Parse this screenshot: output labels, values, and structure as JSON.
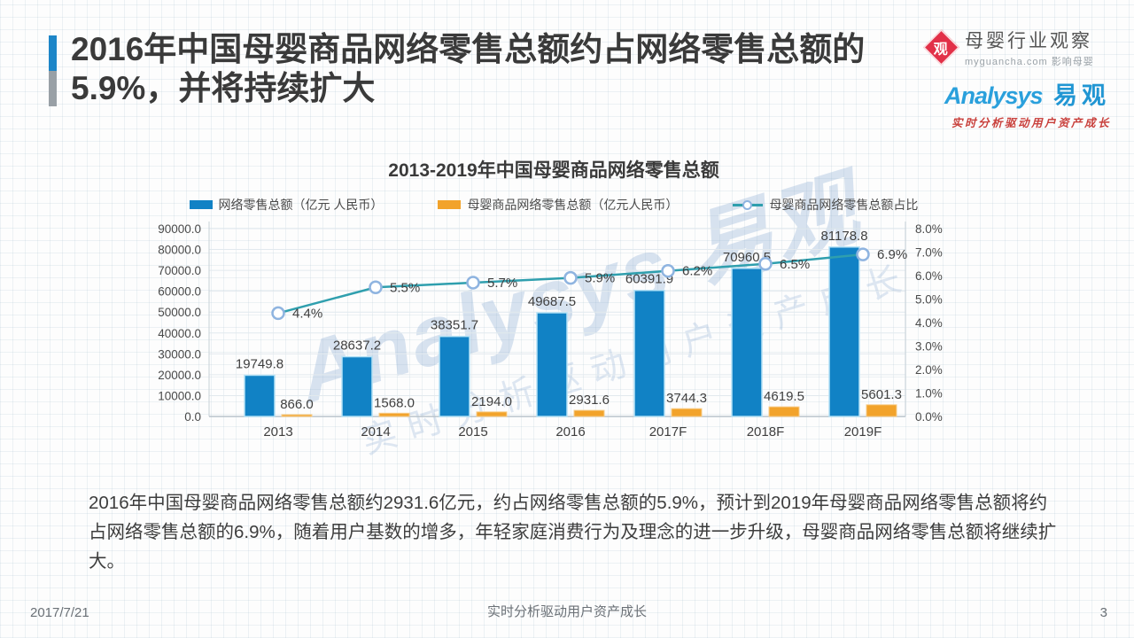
{
  "slide": {
    "title_lines": [
      "2016年中国母婴商品网络零售总额约占网络零售总额的",
      "5.9%，并将持续扩大"
    ]
  },
  "logos": {
    "myguancha": {
      "mark": "观",
      "name": "母婴行业观察",
      "subtitle": "myguancha.com 影响母婴"
    },
    "analysys": {
      "latin": "Analysys",
      "cjk": "易观",
      "tagline": "实时分析驱动用户资产成长"
    }
  },
  "chart": {
    "title": "2013-2019年中国母婴商品网络零售总额"
  },
  "chart_data": {
    "type": "combo",
    "title": "2013-2019年中国母婴商品网络零售总额",
    "categories": [
      "2013",
      "2014",
      "2015",
      "2016",
      "2017F",
      "2018F",
      "2019F"
    ],
    "series": [
      {
        "name": "网络零售总额（亿元 人民币）",
        "type": "bar",
        "axis": "left",
        "color": "#1182c5",
        "edge_color": "#b5e2f6",
        "values": [
          19749.8,
          28637.2,
          38351.7,
          49687.5,
          60391.9,
          70960.5,
          81178.8
        ]
      },
      {
        "name": "母婴商品网络零售总额（亿元人民币）",
        "type": "bar",
        "axis": "left",
        "color": "#f2a32b",
        "edge_color": "#f7cd8a",
        "values": [
          866.0,
          1568.0,
          2194.0,
          2931.6,
          3744.3,
          4619.5,
          5601.3
        ]
      },
      {
        "name": "母婴商品网络零售总额占比",
        "type": "line",
        "axis": "right",
        "color": "#2f9fae",
        "marker_color": "#8fb4e0",
        "values": [
          4.4,
          5.5,
          5.7,
          5.9,
          6.2,
          6.5,
          6.9
        ]
      }
    ],
    "ylim_left": [
      0,
      90000
    ],
    "ytick_step_left": 10000,
    "ylim_right_pct": [
      0,
      8
    ],
    "ytick_step_right_pct": 1,
    "grid": true,
    "legend_position": "top"
  },
  "watermark": {
    "line1": "Analysys 易观",
    "line2": "实时分析驱动用户资产成长"
  },
  "summary": {
    "text": "2016年中国母婴商品网络零售总额约2931.6亿元，约占网络零售总额的5.9%，预计到2019年母婴商品网络零售总额将约占网络零售总额的6.9%，随着用户基数的增多，年轻家庭消费行为及理念的进一步升级，母婴商品网络零售总额将继续扩大。"
  },
  "footer": {
    "date": "2017/7/21",
    "center": "实时分析驱动用户资产成长",
    "page": "3"
  }
}
